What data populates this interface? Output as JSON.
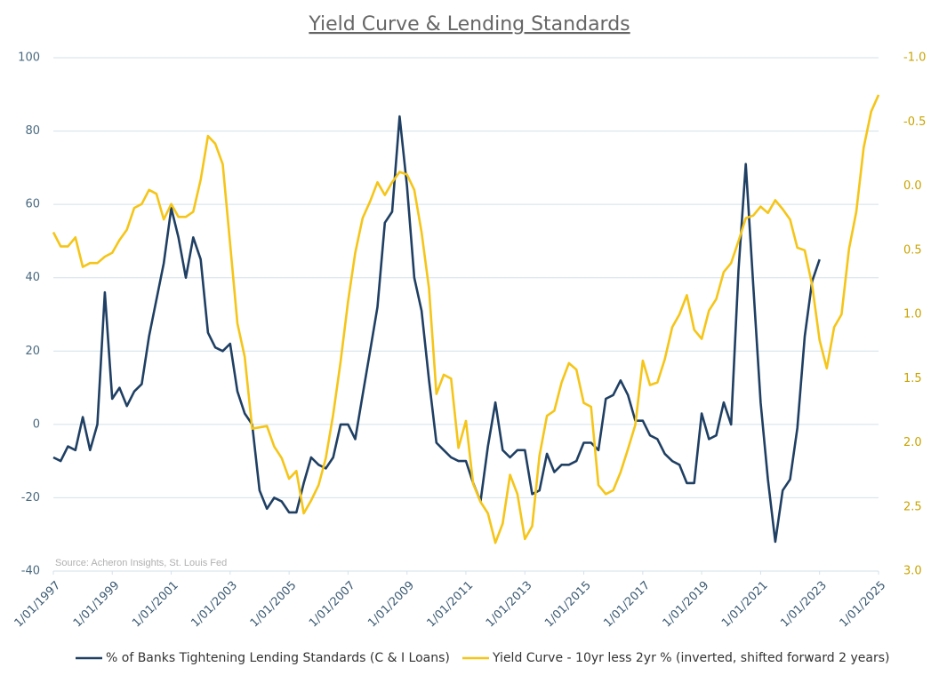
{
  "chart_data": {
    "type": "line",
    "title": "Yield Curve & Lending Standards",
    "annotation": "Source: Acheron Insights, St. Louis Fed",
    "x": [
      "1997-01-01",
      "1997-04-01",
      "1997-07-01",
      "1997-10-01",
      "1998-01-01",
      "1998-04-01",
      "1998-07-01",
      "1998-10-01",
      "1999-01-01",
      "1999-04-01",
      "1999-07-01",
      "1999-10-01",
      "2000-01-01",
      "2000-04-01",
      "2000-07-01",
      "2000-10-01",
      "2001-01-01",
      "2001-04-01",
      "2001-07-01",
      "2001-10-01",
      "2002-01-01",
      "2002-04-01",
      "2002-07-01",
      "2002-10-01",
      "2003-01-01",
      "2003-04-01",
      "2003-07-01",
      "2003-10-01",
      "2004-01-01",
      "2004-04-01",
      "2004-07-01",
      "2004-10-01",
      "2005-01-01",
      "2005-04-01",
      "2005-07-01",
      "2005-10-01",
      "2006-01-01",
      "2006-04-01",
      "2006-07-01",
      "2006-10-01",
      "2007-01-01",
      "2007-04-01",
      "2007-07-01",
      "2007-10-01",
      "2008-01-01",
      "2008-04-01",
      "2008-07-01",
      "2008-10-01",
      "2009-01-01",
      "2009-04-01",
      "2009-07-01",
      "2009-10-01",
      "2010-01-01",
      "2010-04-01",
      "2010-07-01",
      "2010-10-01",
      "2011-01-01",
      "2011-04-01",
      "2011-07-01",
      "2011-10-01",
      "2012-01-01",
      "2012-04-01",
      "2012-07-01",
      "2012-10-01",
      "2013-01-01",
      "2013-04-01",
      "2013-07-01",
      "2013-10-01",
      "2014-01-01",
      "2014-04-01",
      "2014-07-01",
      "2014-10-01",
      "2015-01-01",
      "2015-04-01",
      "2015-07-01",
      "2015-10-01",
      "2016-01-01",
      "2016-04-01",
      "2016-07-01",
      "2016-10-01",
      "2017-01-01",
      "2017-04-01",
      "2017-07-01",
      "2017-10-01",
      "2018-01-01",
      "2018-04-01",
      "2018-07-01",
      "2018-10-01",
      "2019-01-01",
      "2019-04-01",
      "2019-07-01",
      "2019-10-01",
      "2020-01-01",
      "2020-04-01",
      "2020-07-01",
      "2020-10-01",
      "2021-01-01",
      "2021-04-01",
      "2021-07-01",
      "2021-10-01",
      "2022-01-01",
      "2022-04-01",
      "2022-07-01",
      "2022-10-01",
      "2023-01-01",
      "2023-04-01",
      "2023-07-01",
      "2023-10-01",
      "2024-01-01",
      "2024-04-01",
      "2024-07-01",
      "2024-10-01",
      "2025-01-01"
    ],
    "xlim": [
      "1997-01-01",
      "2025-01-01"
    ],
    "xticks": [
      {
        "value": "1997-01-01",
        "label": "1/01/1997"
      },
      {
        "value": "1999-01-01",
        "label": "1/01/1999"
      },
      {
        "value": "2001-01-01",
        "label": "1/01/2001"
      },
      {
        "value": "2003-01-01",
        "label": "1/01/2003"
      },
      {
        "value": "2005-01-01",
        "label": "1/01/2005"
      },
      {
        "value": "2007-01-01",
        "label": "1/01/2007"
      },
      {
        "value": "2009-01-01",
        "label": "1/01/2009"
      },
      {
        "value": "2011-01-01",
        "label": "1/01/2011"
      },
      {
        "value": "2013-01-01",
        "label": "1/01/2013"
      },
      {
        "value": "2015-01-01",
        "label": "1/01/2015"
      },
      {
        "value": "2017-01-01",
        "label": "1/01/2017"
      },
      {
        "value": "2019-01-01",
        "label": "1/01/2019"
      },
      {
        "value": "2021-01-01",
        "label": "1/01/2021"
      },
      {
        "value": "2023-01-01",
        "label": "1/01/2023"
      },
      {
        "value": "2025-01-01",
        "label": "1/01/2025"
      }
    ],
    "ylim": [
      -40,
      100
    ],
    "yticks": [
      -40,
      -20,
      0,
      20,
      40,
      60,
      80,
      100
    ],
    "y2lim": [
      3.0,
      -1.0
    ],
    "y2_inverted": true,
    "y2ticks": [
      {
        "value": 3.0,
        "label": "3.0"
      },
      {
        "value": 2.5,
        "label": "2.5"
      },
      {
        "value": 2.0,
        "label": "2.0"
      },
      {
        "value": 1.5,
        "label": "1.5"
      },
      {
        "value": 1.0,
        "label": "1.0"
      },
      {
        "value": 0.5,
        "label": "0.5"
      },
      {
        "value": 0.0,
        "label": "0.0"
      },
      {
        "value": -0.5,
        "label": "-0.5"
      },
      {
        "value": -1.0,
        "label": "-1.0"
      }
    ],
    "grid": true,
    "legend": "bottom",
    "series": [
      {
        "name": "% of Banks Tightening Lending Standards (C & I Loans)",
        "color": "#1f3f63",
        "axis": "y",
        "values": [
          -9,
          -10,
          -6,
          -7,
          2,
          -7,
          0,
          36,
          7,
          10,
          5,
          9,
          11,
          24,
          34,
          44,
          59,
          51,
          40,
          51,
          45,
          25,
          21,
          20,
          22,
          9,
          3,
          0,
          -18,
          -23,
          -20,
          -21,
          -24,
          -24,
          -16,
          -9,
          -11,
          -12,
          -9,
          0,
          0,
          -4,
          8,
          20,
          32,
          55,
          58,
          84,
          65,
          40,
          31,
          12,
          -5,
          -7,
          -9,
          -10,
          -10,
          -16,
          -21,
          -6,
          6,
          -7,
          -9,
          -7,
          -7,
          -19,
          -18,
          -8,
          -13,
          -11,
          -11,
          -10,
          -5,
          -5,
          -7,
          7,
          8,
          12,
          8,
          1,
          1,
          -3,
          -4,
          -8,
          -10,
          -11,
          -16,
          -16,
          3,
          -4,
          -3,
          6,
          0,
          42,
          71,
          38,
          6,
          -15,
          -32,
          -18,
          -15,
          -1,
          24,
          39,
          45,
          null,
          null,
          null,
          null,
          null,
          null,
          null,
          null
        ]
      },
      {
        "name": "Yield Curve - 10yr less 2yr % (inverted, shifted forward 2 years)",
        "color": "#f5c518",
        "axis": "y2",
        "values": [
          0.36,
          0.47,
          0.47,
          0.4,
          0.63,
          0.6,
          0.6,
          0.55,
          0.52,
          0.42,
          0.34,
          0.17,
          0.14,
          0.03,
          0.06,
          0.26,
          0.14,
          0.24,
          0.24,
          0.2,
          -0.05,
          -0.39,
          -0.33,
          -0.17,
          0.45,
          1.07,
          1.33,
          1.89,
          1.88,
          1.87,
          2.03,
          2.12,
          2.28,
          2.22,
          2.55,
          2.45,
          2.33,
          2.12,
          1.78,
          1.37,
          0.9,
          0.52,
          0.25,
          0.12,
          -0.03,
          0.07,
          -0.03,
          -0.11,
          -0.09,
          0.03,
          0.36,
          0.8,
          1.62,
          1.47,
          1.5,
          2.04,
          1.83,
          2.32,
          2.46,
          2.55,
          2.78,
          2.63,
          2.25,
          2.4,
          2.75,
          2.65,
          2.1,
          1.79,
          1.75,
          1.53,
          1.38,
          1.43,
          1.69,
          1.72,
          2.33,
          2.4,
          2.37,
          2.23,
          2.05,
          1.86,
          1.36,
          1.55,
          1.53,
          1.35,
          1.1,
          1.0,
          0.85,
          1.12,
          1.19,
          0.97,
          0.88,
          0.67,
          0.6,
          0.43,
          0.25,
          0.23,
          0.16,
          0.21,
          0.11,
          0.18,
          0.26,
          0.48,
          0.5,
          0.77,
          1.2,
          1.42,
          1.1,
          1.0,
          0.49,
          0.2,
          -0.3,
          -0.58,
          -0.71
        ]
      }
    ]
  }
}
